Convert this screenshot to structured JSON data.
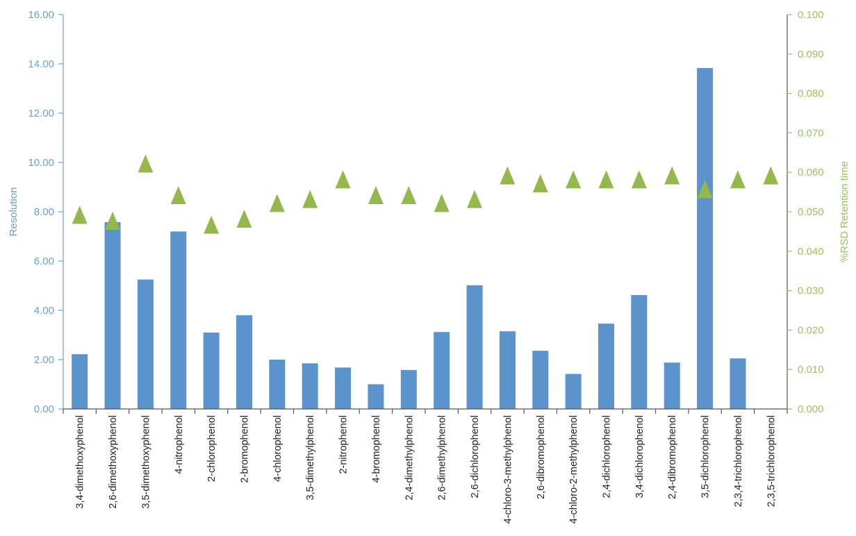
{
  "chart_data": {
    "type": "bar",
    "categories": [
      "3,4-dimethoxyphenol",
      "2,6-dimethoxyphenol",
      "3,5-dimethoxyphenol",
      "4-nitrophenol",
      "2-chlorophenol",
      "2-bromophenol",
      "4-chlorophenol",
      "3,5-dimethylphenol",
      "2-nitrophenol",
      "4-bromophenol",
      "2,4-dimethylphenol",
      "2,6-dimethylphenol",
      "2,6-dichlorophenol",
      "4-chloro-3-methylphenol",
      "2,6-dibromophenol",
      "4-chloro-2-methylphenol",
      "2,4-dichlorophenol",
      "3,4-dichlorophenol",
      "2,4-dibromophenol",
      "3,5-dichlorophenol",
      "2,3,4-trichlorophenol",
      "2,3,5-trichlorophenol"
    ],
    "series": [
      {
        "type": "bar",
        "axis": "left",
        "color": "#5b93cc",
        "values": [
          2.22,
          7.58,
          5.25,
          7.2,
          3.1,
          3.8,
          2.0,
          1.85,
          1.68,
          1.0,
          1.58,
          3.12,
          5.02,
          3.15,
          2.36,
          1.42,
          3.46,
          4.62,
          1.88,
          13.83,
          2.05,
          null
        ]
      },
      {
        "type": "scatter",
        "marker": "triangle",
        "axis": "right",
        "color": "#94b84e",
        "values": [
          0.049,
          0.0475,
          0.062,
          0.054,
          0.0465,
          0.048,
          0.052,
          0.053,
          0.058,
          0.054,
          0.054,
          0.052,
          0.053,
          0.059,
          0.057,
          0.058,
          0.058,
          0.058,
          0.059,
          0.0555,
          0.058,
          0.059
        ]
      }
    ],
    "ylabel": "Resolution",
    "ylabel_right": "%RSD Retention time",
    "ylim": [
      0,
      16
    ],
    "yticks": [
      "0.00",
      "2.00",
      "4.00",
      "6.00",
      "8.00",
      "10.00",
      "12.00",
      "14.00",
      "16.00"
    ],
    "ylim_right": [
      0,
      0.1
    ],
    "yticks_right": [
      "0.000",
      "0.010",
      "0.020",
      "0.030",
      "0.040",
      "0.050",
      "0.060",
      "0.070",
      "0.080",
      "0.090",
      "0.100"
    ],
    "grid": false,
    "left_axis_color": "#6a9fd4",
    "right_axis_color": "#9cc25a"
  }
}
